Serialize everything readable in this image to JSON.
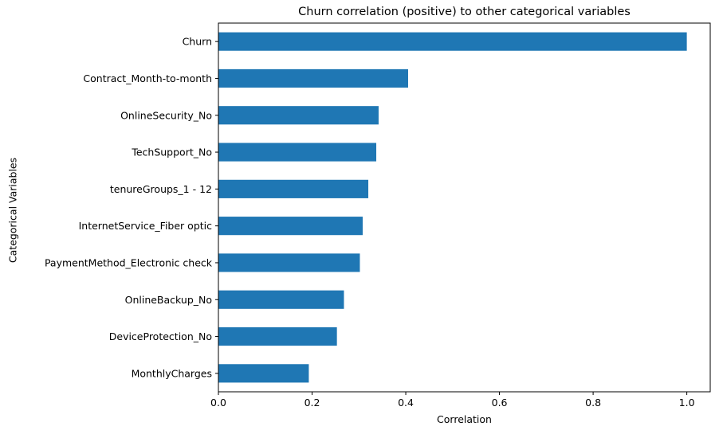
{
  "chart_data": {
    "type": "bar",
    "orientation": "horizontal",
    "title": "Churn correlation (positive) to other categorical variables",
    "xlabel": "Correlation",
    "ylabel": "Categorical Variables",
    "categories": [
      "Churn",
      "Contract_Month-to-month",
      "OnlineSecurity_No",
      "TechSupport_No",
      "tenureGroups_1 - 12",
      "InternetService_Fiber optic",
      "PaymentMethod_Electronic check",
      "OnlineBackup_No",
      "DeviceProtection_No",
      "MonthlyCharges"
    ],
    "values": [
      1.0,
      0.405,
      0.342,
      0.337,
      0.32,
      0.308,
      0.302,
      0.268,
      0.253,
      0.193
    ],
    "xlim": [
      0,
      1.05
    ],
    "xticks": [
      0.0,
      0.2,
      0.4,
      0.6,
      0.8,
      1.0
    ],
    "xtick_labels": [
      "0.0",
      "0.2",
      "0.4",
      "0.6",
      "0.8",
      "1.0"
    ],
    "bar_color": "#1f77b4",
    "grid": false,
    "legend": "none"
  }
}
